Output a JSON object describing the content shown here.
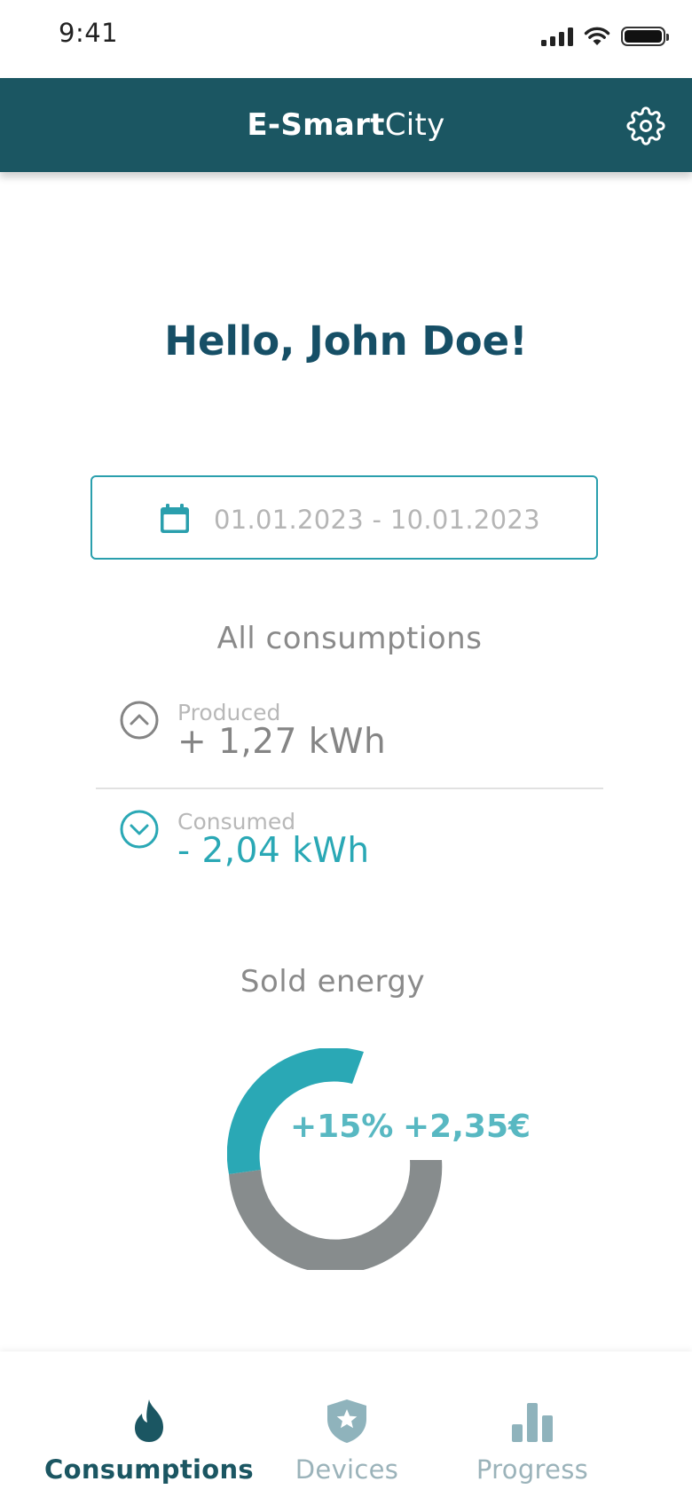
{
  "status_bar": {
    "time": "9:41"
  },
  "header": {
    "title_bold": "E-Smart",
    "title_light": "City"
  },
  "greeting": "Hello, John Doe!",
  "date_range": {
    "value": "01.01.2023 - 10.01.2023"
  },
  "consumptions": {
    "title": "All consumptions",
    "produced": {
      "label": "Produced",
      "value": "+ 1,27 kWh"
    },
    "consumed": {
      "label": "Consumed",
      "value": "- 2,04 kWh"
    }
  },
  "sold_energy": {
    "title": "Sold energy",
    "percent_label": "+15%",
    "amount_label": "+2,35€",
    "chart_type": "donut",
    "colors": {
      "sold": "#2aa8b5",
      "rest": "#878c8d"
    }
  },
  "bottom_nav": {
    "items": [
      {
        "label": "Consumptions",
        "icon": "flame-icon",
        "active": true
      },
      {
        "label": "Devices",
        "icon": "shield-star-icon",
        "active": false
      },
      {
        "label": "Progress",
        "icon": "bar-chart-icon",
        "active": false
      }
    ]
  },
  "colors": {
    "primary": "#1b5662",
    "accent": "#2aa8b5",
    "greeting": "#164f66"
  }
}
